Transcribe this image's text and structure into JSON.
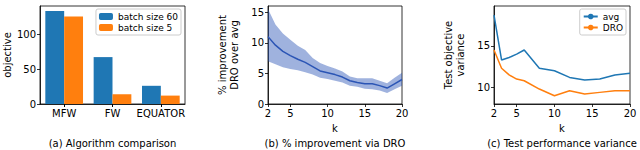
{
  "chart_data": [
    {
      "type": "bar",
      "title": "(a) Algorithm comparison",
      "ylabel": "objective",
      "categories": [
        "MFW",
        "FW",
        "EQUATOR"
      ],
      "series": [
        {
          "name": "batch size 60",
          "color": "#1f77b4",
          "values": [
            133,
            67,
            26
          ]
        },
        {
          "name": "batch size 5",
          "color": "#ff7f0e",
          "values": [
            125,
            14,
            12
          ]
        }
      ],
      "ylim": [
        0,
        140
      ],
      "yticks": [
        0,
        50,
        100
      ],
      "legend": "upper right",
      "grid": false
    },
    {
      "type": "line",
      "title": "(b) % improvement via DRO",
      "xlabel": "k",
      "ylabel": "% improvement\nDRO over avg",
      "x": [
        2,
        3,
        4,
        5,
        6,
        7,
        8,
        9,
        10,
        11,
        12,
        13,
        14,
        15,
        16,
        17,
        18,
        19,
        20
      ],
      "series": [
        {
          "color": "#2b55b5",
          "values": [
            11,
            9.6,
            8.6,
            7.9,
            7.3,
            6.8,
            6.1,
            5.4,
            5.1,
            4.8,
            4.4,
            3.8,
            3.5,
            3.3,
            3.3,
            3,
            2.6,
            3.3,
            4
          ],
          "lower": [
            7,
            6.5,
            6,
            5.7,
            5.5,
            5.2,
            4.8,
            4.3,
            4.1,
            3.8,
            3.5,
            3,
            2.8,
            2.5,
            2.4,
            2.2,
            1.8,
            2.4,
            3
          ],
          "upper": [
            15.5,
            13,
            11.5,
            10.5,
            9.5,
            8.8,
            7.5,
            6.7,
            6.2,
            5.8,
            5.3,
            4.5,
            4.2,
            4.2,
            4.2,
            3.8,
            3.4,
            4.3,
            5.1
          ]
        }
      ],
      "xlim": [
        2,
        20
      ],
      "xticks": [
        2,
        5,
        10,
        15,
        20
      ],
      "ylim": [
        0,
        16
      ],
      "yticks": [
        0,
        5,
        10,
        15
      ],
      "grid": false
    },
    {
      "type": "line",
      "title": "(c) Test performance variance",
      "xlabel": "k",
      "ylabel": "Test objective\nvariance",
      "x": [
        2,
        3,
        4,
        5,
        6,
        8,
        10,
        12,
        14,
        16,
        18,
        20
      ],
      "series": [
        {
          "name": "avg",
          "color": "#1f77b4",
          "values": [
            18.7,
            13.3,
            13.6,
            14.0,
            14.5,
            12.3,
            12.0,
            11.2,
            10.9,
            11.0,
            11.5,
            11.7
          ]
        },
        {
          "name": "DRO",
          "color": "#ff7f0e",
          "values": [
            14.5,
            12.3,
            11.5,
            11.0,
            10.8,
            9.8,
            9.0,
            9.6,
            9.2,
            9.4,
            9.6,
            9.6
          ]
        }
      ],
      "xlim": [
        2,
        20
      ],
      "xticks": [
        2,
        5,
        10,
        15,
        20
      ],
      "ylim": [
        8,
        19.8
      ],
      "yticks": [
        10,
        15
      ],
      "legend": "upper right",
      "grid": false
    }
  ]
}
